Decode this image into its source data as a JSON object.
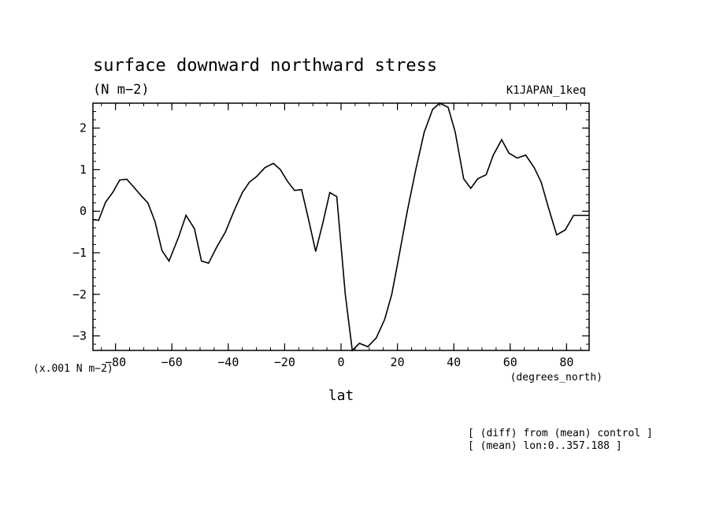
{
  "chart_data": {
    "type": "line",
    "title": "surface downward northward stress",
    "units": "(N m−2)",
    "experiment": "K1JAPAN_1keq",
    "xlabel": "lat",
    "x_units": "(degrees_north)",
    "y_scale_note": "(x.001 N m−2)",
    "xlim": [
      -88,
      88
    ],
    "ylim": [
      -3.35,
      2.6
    ],
    "x_ticks": [
      -80,
      -60,
      -40,
      -20,
      0,
      20,
      40,
      60,
      80
    ],
    "x_tick_labels": [
      "−80",
      "−60",
      "−40",
      "−20",
      "0",
      "20",
      "40",
      "60",
      "80"
    ],
    "y_ticks": [
      -3,
      -2,
      -1,
      0,
      1,
      2
    ],
    "y_tick_labels": [
      "−3",
      "−2",
      "−1",
      "0",
      "1",
      "2"
    ],
    "grid": false,
    "legend": "none",
    "notes": [
      "[ (diff) from (mean) control ]",
      "[ (mean) lon:0..357.188 ]"
    ],
    "series": [
      {
        "x": [
          -88,
          -86,
          -83.5,
          -81,
          -78.5,
          -76,
          -73.5,
          -71,
          -68.5,
          -66,
          -63.5,
          -61,
          -57.5,
          -55,
          -52,
          -49.5,
          -47,
          -44,
          -41,
          -38,
          -35,
          -32.5,
          -30,
          -27,
          -24,
          -21.5,
          -19,
          -16.5,
          -14,
          -11.5,
          -9,
          -6.5,
          -4,
          -1.5,
          1.5,
          4,
          6.5,
          9.5,
          12.5,
          15.5,
          18,
          20.5,
          23.5,
          26.5,
          29.5,
          32.5,
          35,
          38,
          40.5,
          43.5,
          46,
          48.5,
          51.5,
          54,
          57,
          59.5,
          62.5,
          65.5,
          68.5,
          71,
          73.5,
          76.5,
          79.5,
          82.5,
          85.5,
          88
        ],
        "y": [
          -0.2,
          -0.22,
          0.22,
          0.45,
          0.75,
          0.77,
          0.58,
          0.38,
          0.2,
          -0.25,
          -0.95,
          -1.2,
          -0.6,
          -0.1,
          -0.42,
          -1.2,
          -1.25,
          -0.85,
          -0.5,
          0.0,
          0.45,
          0.7,
          0.83,
          1.05,
          1.15,
          1.0,
          0.72,
          0.5,
          0.52,
          -0.2,
          -0.97,
          -0.3,
          0.45,
          0.35,
          -2.0,
          -3.35,
          -3.18,
          -3.26,
          -3.05,
          -2.6,
          -2.0,
          -1.1,
          0.0,
          1.0,
          1.9,
          2.45,
          2.6,
          2.5,
          1.9,
          0.78,
          0.55,
          0.78,
          0.88,
          1.35,
          1.72,
          1.4,
          1.28,
          1.35,
          1.05,
          0.7,
          0.1,
          -0.57,
          -0.45,
          -0.1,
          -0.1,
          -0.1
        ]
      }
    ]
  }
}
